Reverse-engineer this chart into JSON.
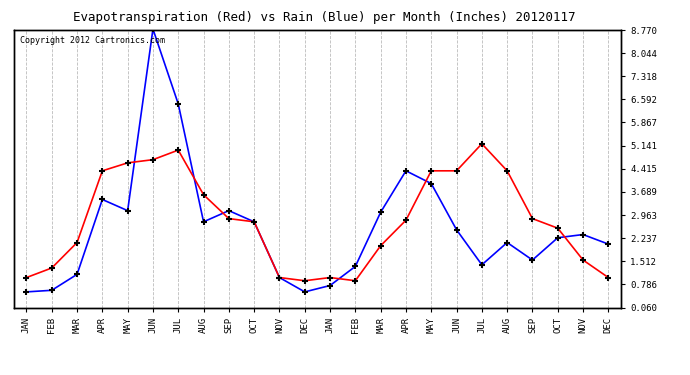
{
  "title": "Evapotranspiration (Red) vs Rain (Blue) per Month (Inches) 20120117",
  "copyright": "Copyright 2012 Cartronics.com",
  "x_labels": [
    "JAN",
    "FEB",
    "MAR",
    "APR",
    "MAY",
    "JUN",
    "JUL",
    "AUG",
    "SEP",
    "OCT",
    "NOV",
    "DEC",
    "JAN",
    "FEB",
    "MAR",
    "APR",
    "MAY",
    "JUN",
    "JUL",
    "AUG",
    "SEP",
    "OCT",
    "NOV",
    "DEC"
  ],
  "blue_data": [
    0.55,
    0.6,
    1.1,
    3.45,
    3.1,
    8.8,
    6.45,
    2.75,
    3.1,
    2.75,
    1.0,
    0.55,
    0.75,
    1.35,
    3.05,
    4.35,
    3.95,
    2.5,
    1.4,
    2.1,
    1.55,
    2.25,
    2.35,
    2.05
  ],
  "red_data": [
    1.0,
    1.3,
    2.1,
    4.35,
    4.6,
    4.7,
    5.0,
    3.6,
    2.85,
    2.75,
    1.0,
    0.9,
    1.0,
    0.9,
    2.0,
    2.8,
    4.35,
    4.35,
    5.2,
    4.35,
    2.85,
    2.55,
    1.55,
    1.0
  ],
  "y_ticks": [
    0.06,
    0.786,
    1.512,
    2.237,
    2.963,
    3.689,
    4.415,
    5.141,
    5.867,
    6.592,
    7.318,
    8.044,
    8.77
  ],
  "ylim": [
    0.06,
    8.77
  ],
  "bg_color": "#ffffff",
  "grid_color": "#bbbbbb",
  "blue_color": "#0000ff",
  "red_color": "#ff0000",
  "title_fontsize": 9,
  "copyright_fontsize": 6,
  "tick_fontsize": 6.5
}
